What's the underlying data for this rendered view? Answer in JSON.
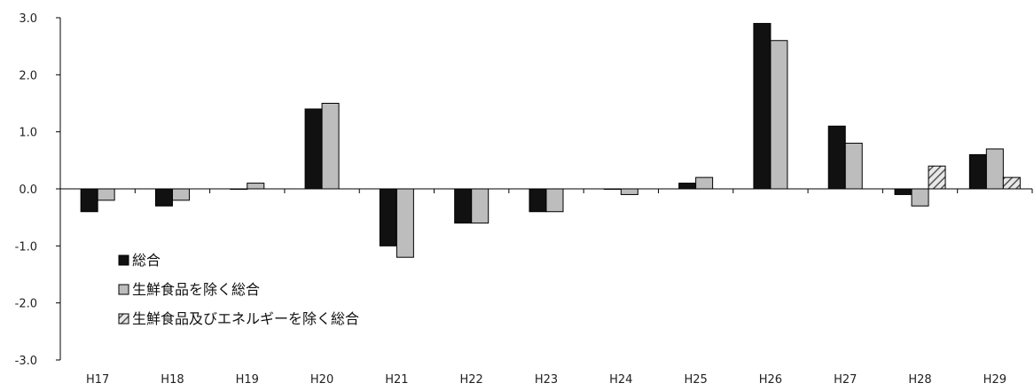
{
  "chart_data": {
    "type": "bar",
    "title": "",
    "xlabel": "",
    "ylabel": "",
    "ylim": [
      -3.0,
      3.0
    ],
    "yticks": [
      "3.0",
      "2.0",
      "1.0",
      "0.0",
      "-1.0",
      "-2.0",
      "-3.0"
    ],
    "grid": false,
    "legend_position": "bottom-left",
    "categories": [
      "H17",
      "H18",
      "H19",
      "H20",
      "H21",
      "H22",
      "H23",
      "H24",
      "H25",
      "H26",
      "H27",
      "H28",
      "H29"
    ],
    "series": [
      {
        "name": "総合",
        "color": "#111111",
        "values": [
          -0.4,
          -0.3,
          0.0,
          1.4,
          -1.0,
          -0.6,
          -0.4,
          0.0,
          0.1,
          2.9,
          1.1,
          -0.1,
          0.6
        ]
      },
      {
        "name": "生鮮食品を除く総合",
        "color": "#bdbdbd",
        "values": [
          -0.2,
          -0.2,
          0.1,
          1.5,
          -1.2,
          -0.6,
          -0.4,
          -0.1,
          0.2,
          2.6,
          0.8,
          -0.3,
          0.7
        ]
      },
      {
        "name": "生鮮食品及びエネルギーを除く総合",
        "color": "#9a9a9a",
        "pattern": "hatched",
        "values": [
          null,
          null,
          null,
          null,
          null,
          null,
          null,
          null,
          null,
          null,
          null,
          0.4,
          0.2
        ]
      }
    ]
  }
}
